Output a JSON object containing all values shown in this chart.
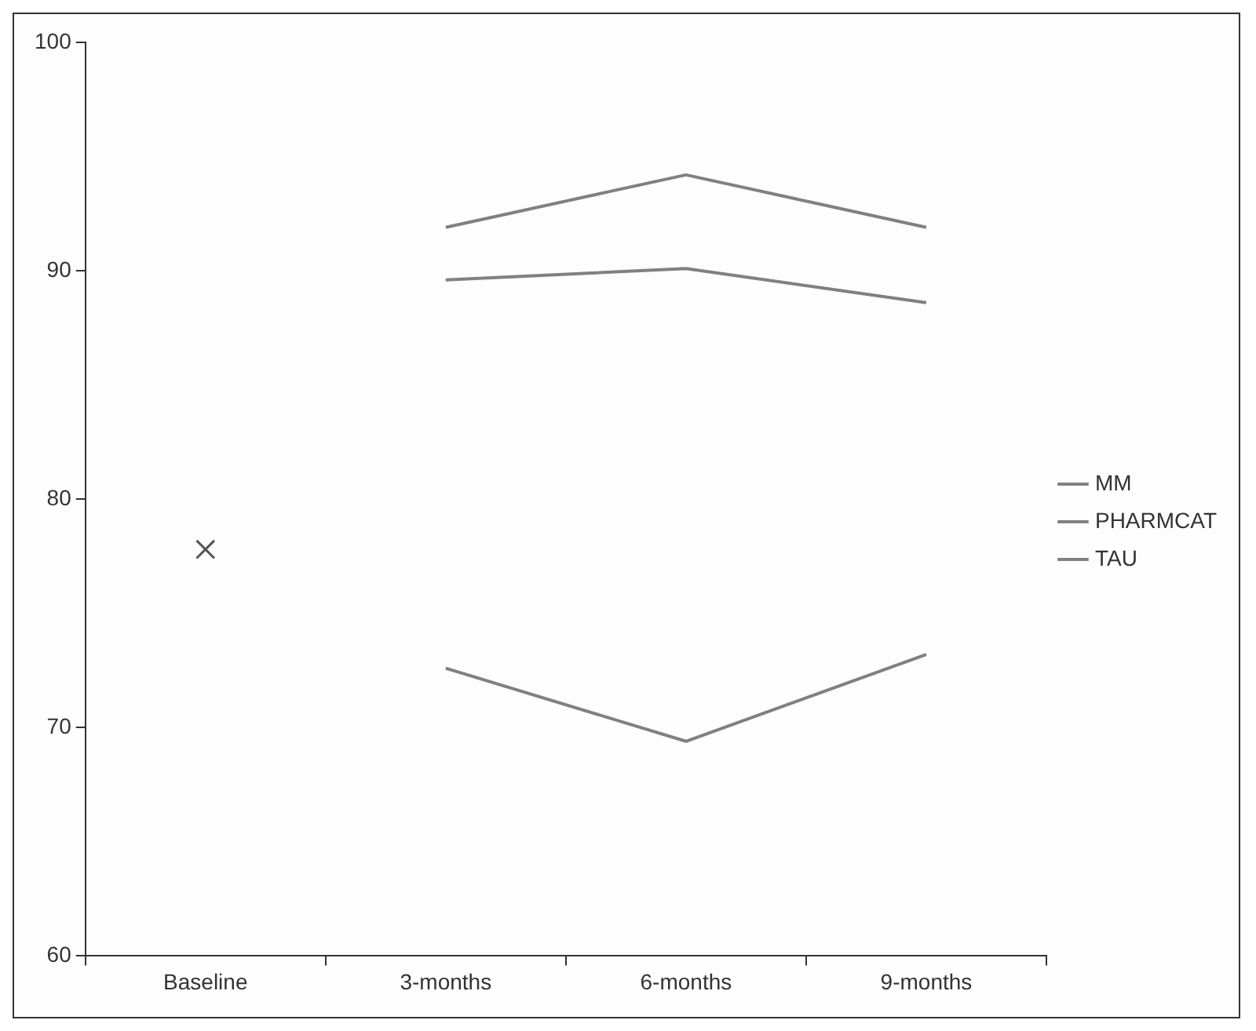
{
  "chart_data": {
    "type": "line",
    "categories": [
      "Baseline",
      "3-months",
      "6-months",
      "9-months"
    ],
    "series": [
      {
        "name": "MM",
        "color": "#808080",
        "values": [
          null,
          91.9,
          94.2,
          91.9
        ]
      },
      {
        "name": "PHARMCAT",
        "color": "#808080",
        "values": [
          null,
          89.6,
          90.1,
          88.6
        ]
      },
      {
        "name": "TAU",
        "color": "#808080",
        "values": [
          null,
          72.6,
          69.4,
          73.2
        ]
      },
      {
        "type": "scatter",
        "marker": "cross",
        "color": "#555555",
        "values": [
          77.8,
          null,
          null,
          null
        ]
      }
    ],
    "ylim": [
      60,
      100
    ],
    "yticks": [
      60,
      70,
      80,
      90,
      100
    ],
    "grid": false,
    "legend": "right",
    "marker": "none",
    "line_style": "solid"
  }
}
